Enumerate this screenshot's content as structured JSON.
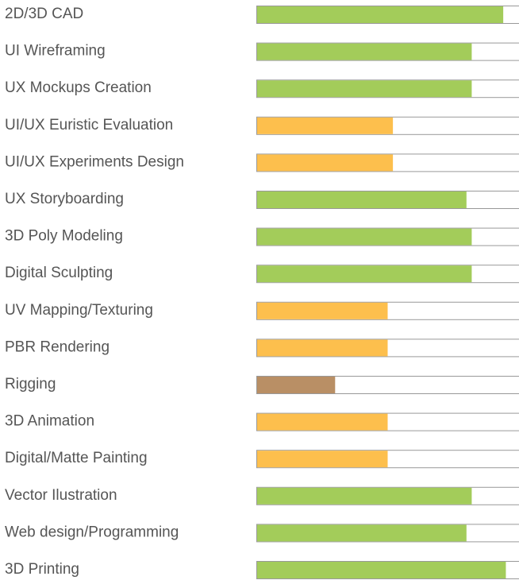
{
  "chart_data": {
    "type": "bar",
    "orientation": "horizontal",
    "categories": [
      "2D/3D CAD",
      "UI Wireframing",
      "UX Mockups Creation",
      "UI/UX Euristic Evaluation",
      "UI/UX Experiments Design",
      "UX Storyboarding",
      "3D Poly Modeling",
      "Digital Sculpting",
      "UV Mapping/Texturing",
      "PBR Rendering",
      "Rigging",
      "3D Animation",
      "Digital/Matte Painting",
      "Vector Ilustration",
      "Web design/Programming",
      "3D Printing"
    ],
    "values": [
      94,
      82,
      82,
      52,
      52,
      80,
      82,
      82,
      50,
      50,
      30,
      50,
      50,
      82,
      80,
      95
    ],
    "colors": [
      "#a3cc5a",
      "#a3cc5a",
      "#a3cc5a",
      "#fdbf4d",
      "#fdbf4d",
      "#a3cc5a",
      "#a3cc5a",
      "#a3cc5a",
      "#fdbf4d",
      "#fdbf4d",
      "#b98f65",
      "#fdbf4d",
      "#fdbf4d",
      "#a3cc5a",
      "#a3cc5a",
      "#a3cc5a"
    ],
    "xlim": [
      0,
      100
    ]
  }
}
